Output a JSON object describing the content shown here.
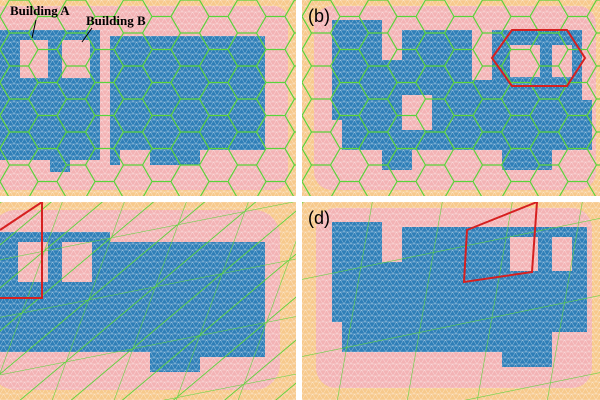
{
  "panel_a": {
    "building_a": "Building A",
    "building_b": "Building B"
  },
  "panel_b": {
    "label": "(b)"
  },
  "panel_d": {
    "label": "(d)"
  }
}
